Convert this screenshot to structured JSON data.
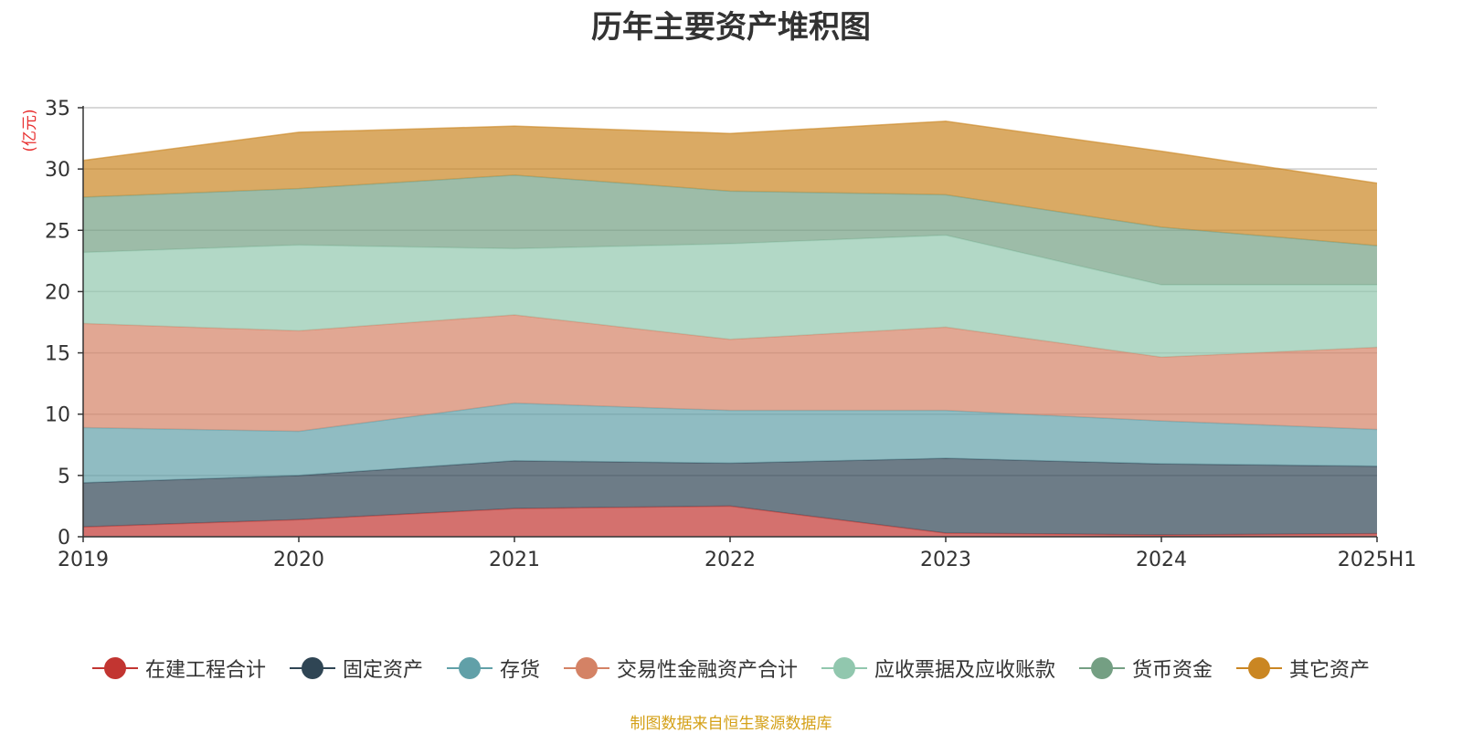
{
  "chart_data": {
    "type": "area",
    "stacked": true,
    "title": "历年主要资产堆积图",
    "ylabel": "(亿元)",
    "xlabel": "",
    "categories": [
      "2019",
      "2020",
      "2021",
      "2022",
      "2023",
      "2024",
      "2025H1"
    ],
    "ylim": [
      0,
      35
    ],
    "yticks": [
      0,
      5,
      10,
      15,
      20,
      25,
      30,
      35
    ],
    "grid": true,
    "legend_position": "bottom",
    "series": [
      {
        "name": "在建工程合计",
        "color": "#c23531",
        "values": [
          0.8,
          1.4,
          2.3,
          2.5,
          0.3,
          0.15,
          0.25
        ]
      },
      {
        "name": "固定资产",
        "color": "#2f4554",
        "values": [
          3.6,
          3.6,
          3.9,
          3.5,
          6.1,
          5.8,
          5.5
        ]
      },
      {
        "name": "存货",
        "color": "#61a0a8",
        "values": [
          4.5,
          3.6,
          4.7,
          4.3,
          3.9,
          3.5,
          3.0
        ]
      },
      {
        "name": "交易性金融资产合计",
        "color": "#d48265",
        "values": [
          8.5,
          8.2,
          7.2,
          5.8,
          6.8,
          5.2,
          6.7
        ]
      },
      {
        "name": "应收票据及应收账款",
        "color": "#91c7ae",
        "values": [
          5.8,
          7.0,
          5.4,
          7.8,
          7.5,
          5.9,
          5.1
        ]
      },
      {
        "name": "货币资金",
        "color": "#749f83",
        "values": [
          4.5,
          4.6,
          6.0,
          4.3,
          3.3,
          4.7,
          3.2
        ]
      },
      {
        "name": "其它资产",
        "color": "#ca8622",
        "values": [
          3.0,
          4.6,
          4.0,
          4.7,
          6.0,
          6.2,
          5.1
        ]
      }
    ],
    "source_note": "制图数据来自恒生聚源数据库"
  }
}
